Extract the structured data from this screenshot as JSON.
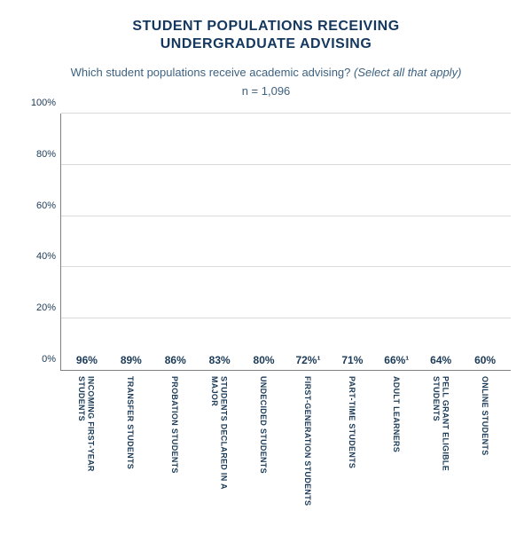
{
  "title_line1": "STUDENT POPULATIONS RECEIVING",
  "title_line2": "UNDERGRADUATE ADVISING",
  "subtitle_q": "Which student populations receive academic advising? ",
  "subtitle_hint": "(Select all that apply)",
  "n_text": "n = 1,096",
  "chart": {
    "type": "bar",
    "ylim_max": 100,
    "yticks": [
      0,
      20,
      40,
      60,
      80,
      100
    ],
    "ytick_labels": [
      "0%",
      "20%",
      "40%",
      "60%",
      "80%",
      "100%"
    ],
    "bar_color": "#2c6a83",
    "grid_color": "#d9d9d9",
    "axis_color": "#808080",
    "text_color": "#1b3a57",
    "title_color": "#14375e",
    "title_fontsize": 16,
    "subtitle_color": "#3d6280",
    "subtitle_fontsize": 13,
    "tick_fontsize": 11,
    "value_fontsize": 12,
    "xlabel_fontsize": 9,
    "background_color": "#ffffff",
    "bars": [
      {
        "label": "INCOMING FIRST-YEAR STUDENTS",
        "value": 96,
        "value_label": "96%"
      },
      {
        "label": "TRANSFER STUDENTS",
        "value": 89,
        "value_label": "89%"
      },
      {
        "label": "PROBATION STUDENTS",
        "value": 86,
        "value_label": "86%"
      },
      {
        "label": "STUDENTS DECLARED IN A MAJOR",
        "value": 83,
        "value_label": "83%"
      },
      {
        "label": "UNDECIDED STUDENTS",
        "value": 80,
        "value_label": "80%"
      },
      {
        "label": "FIRST-GENERATION STUDENTS",
        "value": 72,
        "value_label": "72%¹"
      },
      {
        "label": "PART-TIME STUDENTS",
        "value": 71,
        "value_label": "71%"
      },
      {
        "label": "ADULT LEARNERS",
        "value": 66,
        "value_label": "66%¹"
      },
      {
        "label": "PELL GRANT ELIGIBLE STUDENTS",
        "value": 64,
        "value_label": "64%"
      },
      {
        "label": "ONLINE STUDENTS",
        "value": 60,
        "value_label": "60%"
      }
    ]
  }
}
